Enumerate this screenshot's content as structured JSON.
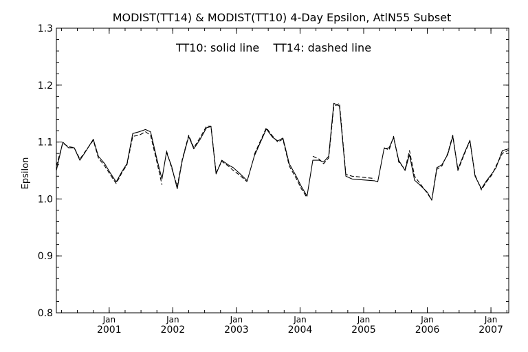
{
  "chart_data": {
    "type": "line",
    "title": "MODIST(TT14) & MODIST(TT10) 4-Day Epsilon, AtlN55 Subset",
    "annotation": "TT10: solid line    TT14: dashed line",
    "ylabel": "Epsilon",
    "xlabel": "",
    "ylim": [
      0.8,
      1.3
    ],
    "xlim": [
      2000.17,
      2007.28
    ],
    "y_ticks": [
      "0.8",
      "0.9",
      "1.0",
      "1.1",
      "1.2",
      "1.3"
    ],
    "y_tick_values": [
      0.8,
      0.9,
      1.0,
      1.1,
      1.2,
      1.3
    ],
    "x_ticks": [
      {
        "month": "Jan",
        "year": "2001",
        "value": 2001.0
      },
      {
        "month": "Jan",
        "year": "2002",
        "value": 2002.0
      },
      {
        "month": "Jan",
        "year": "2003",
        "value": 2003.0
      },
      {
        "month": "Jan",
        "year": "2004",
        "value": 2004.0
      },
      {
        "month": "Jan",
        "year": "2005",
        "value": 2005.0
      },
      {
        "month": "Jan",
        "year": "2006",
        "value": 2006.0
      },
      {
        "month": "Jan",
        "year": "2007",
        "value": 2007.0
      }
    ],
    "series": [
      {
        "name": "TT10",
        "style": "solid",
        "segments": [
          [
            [
              2000.17,
              1.05
            ],
            [
              2000.27,
              1.1
            ],
            [
              2000.36,
              1.09
            ],
            [
              2000.45,
              1.09
            ],
            [
              2000.54,
              1.068
            ],
            [
              2000.64,
              1.085
            ],
            [
              2000.75,
              1.105
            ],
            [
              2000.83,
              1.075
            ],
            [
              2000.93,
              1.062
            ],
            [
              2001.02,
              1.045
            ],
            [
              2001.11,
              1.03
            ],
            [
              2001.2,
              1.048
            ],
            [
              2001.28,
              1.062
            ],
            [
              2001.37,
              1.115
            ],
            [
              2001.47,
              1.118
            ],
            [
              2001.57,
              1.122
            ],
            [
              2001.65,
              1.118
            ],
            [
              2001.75,
              1.07
            ],
            [
              2001.83,
              1.035
            ],
            [
              2001.9,
              1.082
            ],
            [
              2001.98,
              1.058
            ],
            [
              2002.07,
              1.018
            ],
            [
              2002.15,
              1.068
            ],
            [
              2002.25,
              1.11
            ],
            [
              2002.33,
              1.088
            ],
            [
              2002.43,
              1.105
            ],
            [
              2002.53,
              1.125
            ],
            [
              2002.6,
              1.127
            ],
            [
              2002.68,
              1.044
            ],
            [
              2002.77,
              1.068
            ],
            [
              2002.87,
              1.06
            ],
            [
              2002.95,
              1.055
            ],
            [
              2003.05,
              1.045
            ],
            [
              2003.17,
              1.032
            ],
            [
              2003.28,
              1.075
            ],
            [
              2003.47,
              1.123
            ],
            [
              2003.57,
              1.108
            ],
            [
              2003.65,
              1.102
            ],
            [
              2003.73,
              1.107
            ],
            [
              2003.83,
              1.062
            ],
            [
              2003.93,
              1.042
            ],
            [
              2004.02,
              1.022
            ],
            [
              2004.11,
              1.005
            ],
            [
              2004.2,
              1.068
            ],
            [
              2004.3,
              1.068
            ],
            [
              2004.37,
              1.065
            ],
            [
              2004.45,
              1.075
            ],
            [
              2004.53,
              1.168
            ],
            [
              2004.62,
              1.163
            ],
            [
              2004.72,
              1.04
            ],
            [
              2004.82,
              1.035
            ],
            [
              2005.17,
              1.032
            ],
            [
              2005.22,
              1.03
            ],
            [
              2005.32,
              1.088
            ],
            [
              2005.4,
              1.09
            ],
            [
              2005.47,
              1.108
            ],
            [
              2005.55,
              1.068
            ],
            [
              2005.65,
              1.05
            ],
            [
              2005.72,
              1.078
            ],
            [
              2005.8,
              1.033
            ],
            [
              2005.88,
              1.025
            ],
            [
              2006.0,
              1.012
            ],
            [
              2006.07,
              0.998
            ],
            [
              2006.15,
              1.055
            ],
            [
              2006.23,
              1.06
            ],
            [
              2006.32,
              1.078
            ],
            [
              2006.4,
              1.11
            ],
            [
              2006.48,
              1.052
            ],
            [
              2006.58,
              1.08
            ],
            [
              2006.67,
              1.103
            ],
            [
              2006.75,
              1.04
            ],
            [
              2006.85,
              1.018
            ],
            [
              2006.93,
              1.032
            ],
            [
              2007.02,
              1.045
            ],
            [
              2007.08,
              1.055
            ],
            [
              2007.18,
              1.085
            ],
            [
              2007.28,
              1.088
            ]
          ]
        ]
      },
      {
        "name": "TT14",
        "style": "dashed",
        "segments": [
          [
            [
              2000.17,
              1.058
            ],
            [
              2000.27,
              1.098
            ],
            [
              2000.36,
              1.092
            ],
            [
              2000.45,
              1.09
            ],
            [
              2000.54,
              1.07
            ],
            [
              2000.64,
              1.086
            ],
            [
              2000.75,
              1.103
            ],
            [
              2000.83,
              1.072
            ],
            [
              2000.93,
              1.058
            ],
            [
              2001.02,
              1.042
            ],
            [
              2001.11,
              1.027
            ],
            [
              2001.2,
              1.046
            ],
            [
              2001.28,
              1.06
            ],
            [
              2001.37,
              1.11
            ],
            [
              2001.47,
              1.112
            ],
            [
              2001.57,
              1.118
            ],
            [
              2001.65,
              1.112
            ],
            [
              2001.75,
              1.065
            ],
            [
              2001.83,
              1.025
            ]
          ],
          [
            [
              2001.9,
              1.085
            ],
            [
              2001.98,
              1.055
            ],
            [
              2002.07,
              1.022
            ],
            [
              2002.15,
              1.07
            ],
            [
              2002.25,
              1.112
            ],
            [
              2002.33,
              1.09
            ],
            [
              2002.43,
              1.108
            ],
            [
              2002.53,
              1.128
            ],
            [
              2002.6,
              1.128
            ],
            [
              2002.68,
              1.046
            ],
            [
              2002.77,
              1.066
            ],
            [
              2002.87,
              1.058
            ],
            [
              2002.95,
              1.05
            ],
            [
              2003.05,
              1.042
            ],
            [
              2003.17,
              1.03
            ]
          ],
          [
            [
              2003.28,
              1.078
            ],
            [
              2003.47,
              1.125
            ],
            [
              2003.57,
              1.11
            ],
            [
              2003.65,
              1.1
            ],
            [
              2003.73,
              1.105
            ],
            [
              2003.83,
              1.058
            ],
            [
              2003.93,
              1.038
            ],
            [
              2004.02,
              1.018
            ],
            [
              2004.11,
              1.002
            ]
          ],
          [
            [
              2004.2,
              1.075
            ],
            [
              2004.3,
              1.07
            ],
            [
              2004.37,
              1.062
            ],
            [
              2004.45,
              1.072
            ],
            [
              2004.53,
              1.162
            ],
            [
              2004.62,
              1.168
            ],
            [
              2004.72,
              1.043
            ],
            [
              2004.82,
              1.04
            ],
            [
              2005.17,
              1.036
            ]
          ],
          [
            [
              2005.32,
              1.09
            ],
            [
              2005.4,
              1.086
            ],
            [
              2005.47,
              1.11
            ],
            [
              2005.55,
              1.065
            ],
            [
              2005.65,
              1.052
            ],
            [
              2005.72,
              1.085
            ],
            [
              2005.8,
              1.04
            ],
            [
              2005.88,
              1.028
            ],
            [
              2006.0,
              1.01
            ],
            [
              2006.07,
              0.998
            ],
            [
              2006.15,
              1.052
            ],
            [
              2006.23,
              1.058
            ],
            [
              2006.32,
              1.08
            ],
            [
              2006.4,
              1.112
            ],
            [
              2006.48,
              1.05
            ],
            [
              2006.58,
              1.078
            ],
            [
              2006.67,
              1.102
            ],
            [
              2006.75,
              1.042
            ],
            [
              2006.85,
              1.016
            ],
            [
              2006.93,
              1.03
            ],
            [
              2007.02,
              1.043
            ],
            [
              2007.08,
              1.058
            ],
            [
              2007.18,
              1.08
            ],
            [
              2007.28,
              1.086
            ]
          ]
        ]
      }
    ]
  }
}
